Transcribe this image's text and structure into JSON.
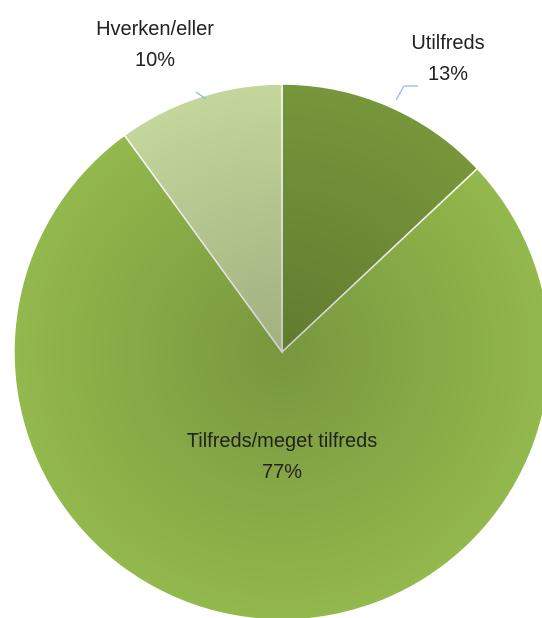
{
  "chart_data": {
    "type": "pie",
    "categories": [
      "Utilfreds",
      "Tilfreds/meget tilfreds",
      "Hverken/eller"
    ],
    "values": [
      13,
      77,
      10
    ],
    "value_labels": [
      "13%",
      "77%",
      "10%"
    ],
    "colors": [
      "#77963a",
      "#93b84c",
      "#c3d69b"
    ]
  }
}
